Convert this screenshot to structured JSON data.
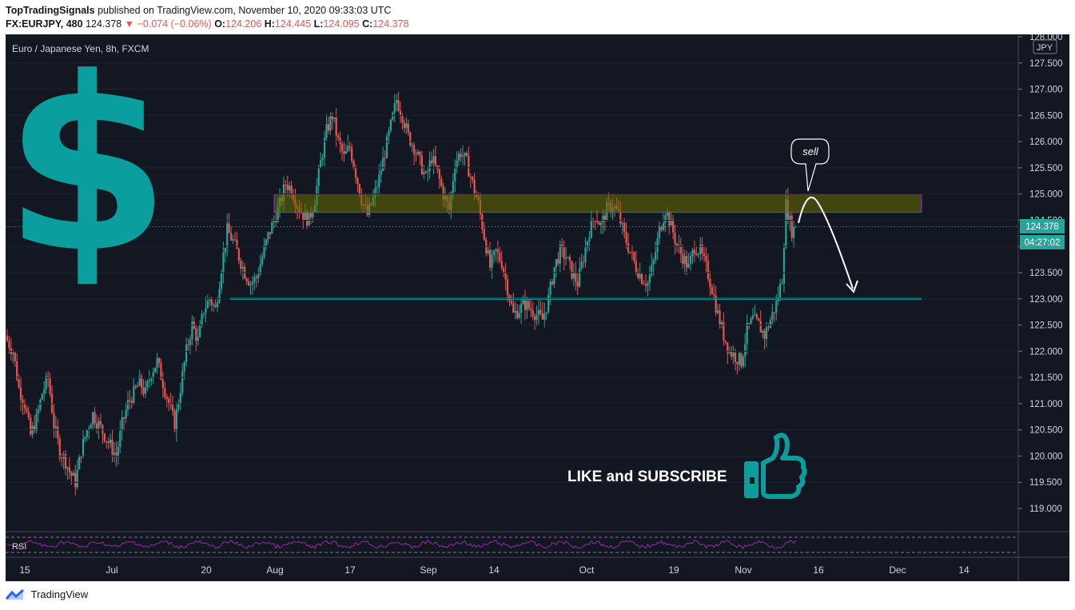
{
  "header": {
    "publisher": "TopTradingSignals",
    "published_text": "published on TradingView.com, November 10, 2020 09:33:03 UTC",
    "symbol": "FX:EURJPY, 480",
    "last": "124.378",
    "change_arrow": "▼",
    "change": "−0.074 (−0.06%)",
    "o_label": "O:",
    "o_value": "124.206",
    "h_label": "H:",
    "h_value": "124.445",
    "l_label": "L:",
    "l_value": "124.095",
    "c_label": "C:",
    "c_value": "124.378"
  },
  "chart_title": "Euro / Japanese Yen, 8h, FXCM",
  "currency_badge": "JPY",
  "price_tag": "124.378",
  "countdown_tag": "04:27:02",
  "annotation": {
    "sell_label": "sell",
    "cta": "LIKE and SUBSCRIBE"
  },
  "rsi_label": "RSI",
  "footer": {
    "brand": "TradingView"
  },
  "icons": [
    "dollar-sign-icon",
    "thumbs-up-icon",
    "tradingview-logo-icon"
  ],
  "colors": {
    "background": "#131722",
    "up": "#26a69a",
    "down": "#ef5350",
    "support_line": "#00e5ff",
    "resistance_zone": "#6b6b00",
    "resistance_border": "#a020f0",
    "icon_teal": "#0a9e9e",
    "rsi_line": "#9c27b0"
  },
  "chart_data": {
    "type": "candlestick",
    "symbol": "FX:EURJPY",
    "interval": "8h",
    "ylim": [
      118.6,
      128.1
    ],
    "y_ticks": [
      "119.000",
      "119.500",
      "120.000",
      "120.500",
      "121.000",
      "121.500",
      "122.000",
      "122.500",
      "123.000",
      "123.500",
      "124.000",
      "124.500",
      "125.000",
      "125.500",
      "126.000",
      "126.500",
      "127.000",
      "127.500",
      "128.000"
    ],
    "x_ticks": [
      "15",
      "Jul",
      "20",
      "Aug",
      "17",
      "Sep",
      "14",
      "Oct",
      "19",
      "Nov",
      "16",
      "Dec",
      "14"
    ],
    "close_path": [
      [
        0,
        122.2
      ],
      [
        3,
        122.0
      ],
      [
        6,
        121.3
      ],
      [
        9,
        121.0
      ],
      [
        12,
        120.4
      ],
      [
        15,
        120.7
      ],
      [
        18,
        121.2
      ],
      [
        21,
        121.5
      ],
      [
        24,
        120.6
      ],
      [
        27,
        120.1
      ],
      [
        30,
        119.9
      ],
      [
        32,
        119.7
      ],
      [
        35,
        119.5
      ],
      [
        38,
        120.1
      ],
      [
        41,
        120.5
      ],
      [
        44,
        120.8
      ],
      [
        47,
        120.6
      ],
      [
        50,
        120.4
      ],
      [
        53,
        120.2
      ],
      [
        56,
        120.0
      ],
      [
        59,
        120.6
      ],
      [
        62,
        121.0
      ],
      [
        65,
        121.2
      ],
      [
        68,
        121.4
      ],
      [
        71,
        121.2
      ],
      [
        74,
        121.6
      ],
      [
        77,
        121.8
      ],
      [
        80,
        121.4
      ],
      [
        83,
        121.0
      ],
      [
        86,
        120.6
      ],
      [
        89,
        121.3
      ],
      [
        92,
        122.0
      ],
      [
        95,
        122.5
      ],
      [
        98,
        122.2
      ],
      [
        101,
        122.8
      ],
      [
        104,
        123.0
      ],
      [
        107,
        122.8
      ],
      [
        110,
        123.6
      ],
      [
        113,
        124.3
      ],
      [
        116,
        124.1
      ],
      [
        119,
        123.8
      ],
      [
        122,
        123.5
      ],
      [
        125,
        123.3
      ],
      [
        128,
        123.4
      ],
      [
        131,
        123.8
      ],
      [
        134,
        124.2
      ],
      [
        137,
        124.5
      ],
      [
        140,
        124.8
      ],
      [
        143,
        125.2
      ],
      [
        146,
        125.1
      ],
      [
        149,
        124.8
      ],
      [
        152,
        124.6
      ],
      [
        155,
        124.5
      ],
      [
        158,
        124.9
      ],
      [
        161,
        125.6
      ],
      [
        164,
        126.2
      ],
      [
        167,
        126.5
      ],
      [
        170,
        126.0
      ],
      [
        173,
        125.7
      ],
      [
        176,
        125.9
      ],
      [
        179,
        125.4
      ],
      [
        182,
        124.9
      ],
      [
        185,
        124.6
      ],
      [
        188,
        124.9
      ],
      [
        191,
        125.3
      ],
      [
        194,
        125.8
      ],
      [
        197,
        126.3
      ],
      [
        200,
        126.8
      ],
      [
        203,
        126.5
      ],
      [
        206,
        126.1
      ],
      [
        209,
        125.9
      ],
      [
        212,
        125.6
      ],
      [
        215,
        125.3
      ],
      [
        218,
        125.7
      ],
      [
        221,
        125.4
      ],
      [
        224,
        125.0
      ],
      [
        227,
        124.7
      ],
      [
        230,
        125.6
      ],
      [
        233,
        125.8
      ],
      [
        236,
        125.6
      ],
      [
        239,
        125.2
      ],
      [
        242,
        124.8
      ],
      [
        245,
        124.2
      ],
      [
        248,
        123.6
      ],
      [
        251,
        123.9
      ],
      [
        254,
        123.7
      ],
      [
        257,
        123.2
      ],
      [
        260,
        122.7
      ],
      [
        263,
        122.8
      ],
      [
        266,
        122.9
      ],
      [
        269,
        122.8
      ],
      [
        272,
        122.7
      ],
      [
        275,
        122.6
      ],
      [
        278,
        123.0
      ],
      [
        281,
        123.6
      ],
      [
        284,
        123.9
      ],
      [
        287,
        123.8
      ],
      [
        290,
        123.5
      ],
      [
        293,
        123.3
      ],
      [
        296,
        123.8
      ],
      [
        299,
        124.3
      ],
      [
        302,
        124.6
      ],
      [
        305,
        124.4
      ],
      [
        308,
        124.7
      ],
      [
        311,
        124.8
      ],
      [
        314,
        124.6
      ],
      [
        317,
        124.2
      ],
      [
        320,
        123.9
      ],
      [
        323,
        123.6
      ],
      [
        326,
        123.4
      ],
      [
        329,
        123.3
      ],
      [
        332,
        123.7
      ],
      [
        335,
        124.3
      ],
      [
        338,
        124.7
      ],
      [
        341,
        124.4
      ],
      [
        344,
        124.0
      ],
      [
        347,
        123.8
      ],
      [
        350,
        123.6
      ],
      [
        353,
        124.0
      ],
      [
        356,
        123.9
      ],
      [
        359,
        123.6
      ],
      [
        362,
        123.2
      ],
      [
        365,
        122.7
      ],
      [
        368,
        122.3
      ],
      [
        371,
        122.0
      ],
      [
        374,
        121.9
      ],
      [
        377,
        121.8
      ],
      [
        380,
        122.4
      ],
      [
        383,
        122.6
      ],
      [
        386,
        122.5
      ],
      [
        389,
        122.3
      ],
      [
        392,
        122.6
      ],
      [
        395,
        122.9
      ],
      [
        398,
        123.4
      ],
      [
        400,
        124.8
      ],
      [
        403,
        124.3
      ],
      [
        406,
        124.378
      ]
    ],
    "resistance_zone": {
      "from": 124.65,
      "to": 125.0
    },
    "support_level": 123.0,
    "last_price": 124.378,
    "projection": {
      "signal": "sell",
      "target": 123.0
    }
  }
}
